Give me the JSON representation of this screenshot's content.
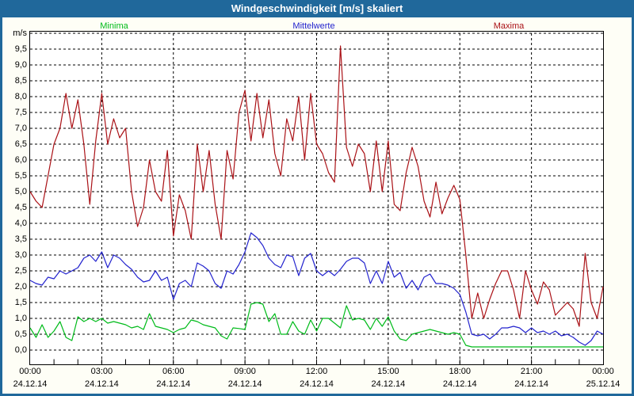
{
  "title_bar": {
    "title": "Windgeschwindigkeit [m/s] skaliert"
  },
  "colors": {
    "frame": "#20689b",
    "background": "#fefef6",
    "plot_background": "#ffffff",
    "grid": "#000000",
    "minima": "#00bb1a",
    "mittelwerte": "#2323ce",
    "maxima": "#aa1116"
  },
  "y_axis": {
    "unit": "m/s",
    "tick_labels": [
      "9,5",
      "9,0",
      "8,5",
      "8,0",
      "7,5",
      "7,0",
      "6,5",
      "6,0",
      "5,5",
      "5,0",
      "4,5",
      "4,0",
      "3,5",
      "3,0",
      "2,5",
      "2,0",
      "1,5",
      "1,0",
      "0,5",
      "0,0"
    ]
  },
  "x_axis": {
    "labels": [
      {
        "time": "00:00",
        "date": "24.12.14"
      },
      {
        "time": "03:00",
        "date": "24.12.14"
      },
      {
        "time": "06:00",
        "date": "24.12.14"
      },
      {
        "time": "09:00",
        "date": "24.12.14"
      },
      {
        "time": "12:00",
        "date": "24.12.14"
      },
      {
        "time": "15:00",
        "date": "24.12.14"
      },
      {
        "time": "18:00",
        "date": "24.12.14"
      },
      {
        "time": "21:00",
        "date": "24.12.14"
      },
      {
        "time": "00:00",
        "date": "25.12.14"
      }
    ]
  },
  "chart_data": {
    "type": "line",
    "title": "Windgeschwindigkeit [m/s] skaliert",
    "ylabel": "m/s",
    "ylim": [
      0,
      10
    ],
    "y_tick_step": 0.5,
    "x_start_hours": 0,
    "x_end_hours": 24,
    "x_step_minutes": 15,
    "x_gridline_interval_hours": 3,
    "grid": true,
    "legend_position": "top",
    "series": [
      {
        "name": "Minima",
        "color_key": "minima",
        "values": [
          0.7,
          0.4,
          0.8,
          0.4,
          0.6,
          0.9,
          0.4,
          0.3,
          1.05,
          0.9,
          1.0,
          0.9,
          1.0,
          0.85,
          0.9,
          0.85,
          0.8,
          0.7,
          0.75,
          0.65,
          1.15,
          0.75,
          0.7,
          0.65,
          0.55,
          0.65,
          0.7,
          0.95,
          0.9,
          0.8,
          0.75,
          0.7,
          0.45,
          0.35,
          0.7,
          0.68,
          0.65,
          1.45,
          1.5,
          1.45,
          0.9,
          1.15,
          0.5,
          0.5,
          0.9,
          0.6,
          0.5,
          0.95,
          0.6,
          1.0,
          1.0,
          0.85,
          0.7,
          1.4,
          0.95,
          1.0,
          0.95,
          0.65,
          1.0,
          0.75,
          1.05,
          0.6,
          0.35,
          0.3,
          0.5,
          0.55,
          0.6,
          0.65,
          0.6,
          0.55,
          0.5,
          0.55,
          0.5,
          0.15,
          0.1,
          0.1,
          0.1,
          0.1,
          0.1,
          0.1,
          0.1,
          0.1,
          0.1,
          0.1,
          0.1,
          0.1,
          0.1,
          0.1,
          0.1,
          0.1,
          0.1,
          0.1,
          0.1,
          0.1,
          0.1,
          0.1,
          0.1
        ]
      },
      {
        "name": "Mittelwerte",
        "color_key": "mittelwerte",
        "values": [
          2.2,
          2.1,
          2.05,
          2.3,
          2.25,
          2.5,
          2.4,
          2.5,
          2.6,
          2.9,
          3.0,
          2.8,
          3.1,
          2.6,
          3.0,
          2.9,
          2.7,
          2.55,
          2.3,
          2.15,
          2.2,
          2.5,
          2.2,
          2.3,
          1.6,
          2.1,
          2.2,
          2.0,
          2.75,
          2.65,
          2.5,
          2.1,
          1.95,
          2.5,
          2.4,
          2.7,
          3.1,
          3.7,
          3.55,
          3.3,
          2.9,
          2.7,
          2.6,
          3.0,
          2.95,
          2.35,
          2.9,
          3.05,
          2.5,
          2.35,
          2.5,
          2.35,
          2.55,
          2.8,
          2.9,
          2.9,
          2.75,
          2.1,
          2.5,
          2.1,
          2.8,
          2.3,
          2.45,
          1.95,
          2.2,
          1.9,
          2.3,
          2.4,
          2.1,
          2.1,
          2.05,
          1.95,
          1.75,
          1.2,
          0.5,
          0.45,
          0.5,
          0.35,
          0.5,
          0.7,
          0.7,
          0.75,
          0.7,
          0.55,
          0.7,
          0.55,
          0.6,
          0.5,
          0.6,
          0.45,
          0.5,
          0.4,
          0.25,
          0.15,
          0.3,
          0.6,
          0.5
        ]
      },
      {
        "name": "Maxima",
        "color_key": "maxima",
        "values": [
          5.0,
          4.7,
          4.5,
          5.5,
          6.5,
          7.0,
          8.1,
          7.0,
          7.9,
          6.5,
          4.6,
          6.6,
          8.1,
          6.5,
          7.3,
          6.7,
          7.0,
          5.0,
          3.9,
          4.5,
          6.0,
          5.0,
          4.7,
          6.3,
          3.6,
          4.9,
          4.4,
          3.5,
          6.5,
          5.0,
          6.3,
          4.6,
          3.5,
          6.3,
          5.4,
          7.5,
          8.2,
          6.6,
          8.1,
          6.7,
          7.9,
          6.2,
          5.5,
          7.3,
          6.6,
          8.0,
          6.0,
          8.1,
          6.5,
          6.2,
          5.6,
          5.3,
          9.6,
          6.4,
          5.8,
          6.5,
          6.2,
          5.0,
          6.6,
          5.0,
          6.6,
          4.6,
          4.4,
          5.6,
          6.4,
          5.8,
          4.7,
          4.2,
          5.3,
          4.3,
          4.8,
          5.2,
          4.75,
          3.0,
          1.0,
          1.8,
          1.0,
          1.6,
          2.1,
          2.5,
          2.5,
          1.9,
          1.0,
          2.5,
          1.9,
          1.45,
          2.15,
          1.9,
          1.1,
          1.3,
          1.5,
          1.3,
          0.75,
          3.05,
          1.5,
          1.0,
          2.0
        ]
      }
    ]
  }
}
